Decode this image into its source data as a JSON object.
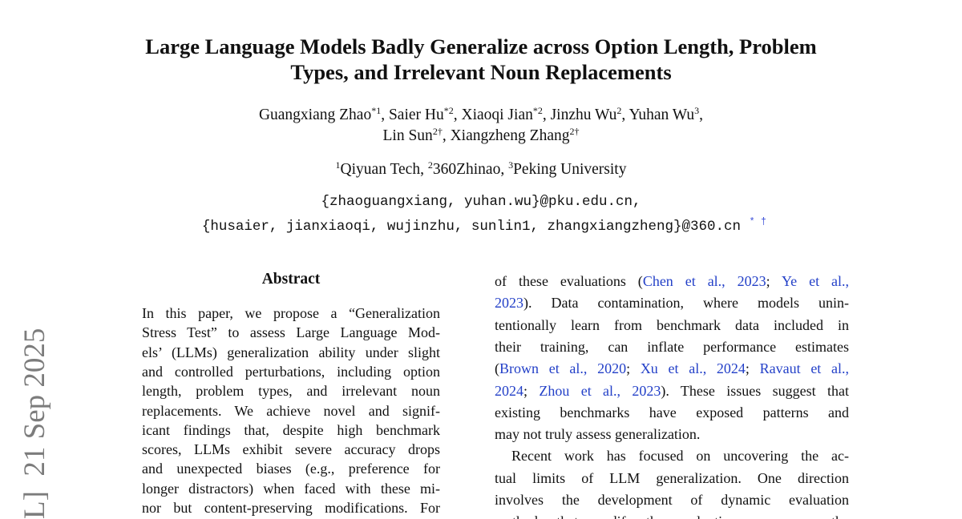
{
  "stamp": "L]  21 Sep 2025",
  "title": [
    "Large Language Models Badly Generalize across Option Length, Problem",
    "Types, and Irrelevant Noun Replacements"
  ],
  "authors": {
    "line1": [
      {
        "name": "Guangxiang Zhao",
        "sup": "*1"
      },
      {
        "name": "Saier Hu",
        "sup": "*2"
      },
      {
        "name": "Xiaoqi Jian",
        "sup": "*2"
      },
      {
        "name": "Jinzhu Wu",
        "sup": "2"
      },
      {
        "name": "Yuhan Wu",
        "sup": "3"
      }
    ],
    "line2": [
      {
        "name": "Lin Sun",
        "sup": "2†"
      },
      {
        "name": "Xiangzheng Zhang",
        "sup": "2†"
      }
    ]
  },
  "affiliations": [
    {
      "sup": "1",
      "name": "Qiyuan Tech"
    },
    {
      "sup": "2",
      "name": "360Zhinao"
    },
    {
      "sup": "3",
      "name": "Peking University"
    }
  ],
  "emails": [
    "{zhaoguangxiang, yuhan.wu}@pku.edu.cn,",
    "{husaier, jianxiaoqi, wujinzhu, sunlin1, zhangxiangzheng}@360.cn"
  ],
  "email_marks": "* †",
  "abstract": {
    "heading": "Abstract",
    "lines": [
      "In this paper, we propose a “Generalization",
      "Stress Test” to assess Large Language Mod-",
      "els’ (LLMs) generalization ability under slight",
      "and controlled perturbations, including option",
      "length, problem types, and irrelevant noun",
      "replacements.  We achieve novel and signif-",
      "icant findings that, despite high benchmark",
      "scores, LLMs exhibit severe accuracy drops",
      "and unexpected biases (e.g., preference for",
      "longer distractors) when faced with these mi-",
      "nor but content-preserving modifications. For"
    ]
  },
  "right_column": [
    {
      "segs": [
        {
          "t": "of these evaluations ("
        },
        {
          "t": "Chen et al., 2023",
          "link": true
        },
        {
          "t": "; "
        },
        {
          "t": "Ye et al.,",
          "link": true
        }
      ]
    },
    {
      "segs": [
        {
          "t": "2023",
          "link": true
        },
        {
          "t": ").  Data contamination, where models unin-"
        }
      ]
    },
    {
      "segs": [
        {
          "t": "tentionally learn from benchmark data included in"
        }
      ]
    },
    {
      "segs": [
        {
          "t": "their training, can inflate performance estimates"
        }
      ]
    },
    {
      "segs": [
        {
          "t": "("
        },
        {
          "t": "Brown et al., 2020",
          "link": true
        },
        {
          "t": "; "
        },
        {
          "t": "Xu et al., 2024",
          "link": true
        },
        {
          "t": "; "
        },
        {
          "t": "Ravaut et al.,",
          "link": true
        }
      ]
    },
    {
      "segs": [
        {
          "t": "2024",
          "link": true
        },
        {
          "t": "; "
        },
        {
          "t": "Zhou et al., 2023",
          "link": true
        },
        {
          "t": "). These issues suggest that"
        }
      ]
    },
    {
      "segs": [
        {
          "t": "existing benchmarks have exposed patterns and"
        }
      ]
    },
    {
      "segs": [
        {
          "t": "may not truly assess generalization."
        }
      ],
      "last": true
    },
    {
      "segs": [
        {
          "t": "Recent work has focused on uncovering the ac-"
        }
      ],
      "indent": true
    },
    {
      "segs": [
        {
          "t": "tual limits of LLM generalization. One direction"
        }
      ]
    },
    {
      "segs": [
        {
          "t": "involves the development of dynamic evaluation"
        }
      ]
    },
    {
      "segs": [
        {
          "t": "methods that modify the evaluation process or the"
        }
      ]
    }
  ]
}
